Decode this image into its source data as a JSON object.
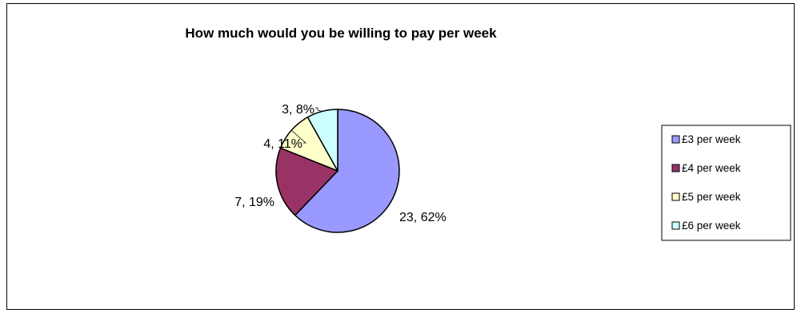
{
  "chart_data": {
    "type": "pie",
    "title": "How much would you be willing to pay per week",
    "legend_position": "right",
    "start_angle_deg": 0,
    "direction": "clockwise",
    "slices": [
      {
        "label": "£3 per week",
        "value": 23,
        "percent": 62,
        "data_label": "23, 62%",
        "color": "#9999FF"
      },
      {
        "label": "£4 per week",
        "value": 7,
        "percent": 19,
        "data_label": "7, 19%",
        "color": "#993366"
      },
      {
        "label": "£5 per week",
        "value": 4,
        "percent": 11,
        "data_label": "4, 11%",
        "color": "#FFFFCC"
      },
      {
        "label": "£6 per week",
        "value": 3,
        "percent": 8,
        "data_label": "3, 8%",
        "color": "#CCFFFF"
      }
    ]
  }
}
